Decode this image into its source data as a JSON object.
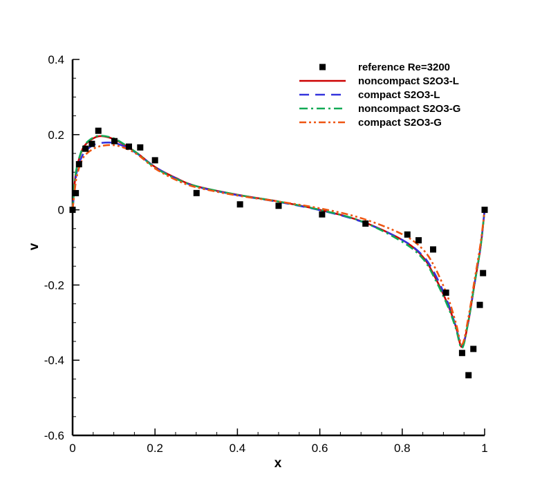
{
  "chart_data": {
    "type": "line",
    "xlabel": "x",
    "ylabel": "v",
    "xlim": [
      0,
      1
    ],
    "ylim": [
      -0.6,
      0.4
    ],
    "xticks": [
      0,
      0.2,
      0.4,
      0.6,
      0.8,
      1
    ],
    "xtick_labels": [
      "0",
      "0.2",
      "0.4",
      "0.6",
      "0.8",
      "1"
    ],
    "yticks": [
      -0.6,
      -0.4,
      -0.2,
      0,
      0.2,
      0.4
    ],
    "ytick_labels": [
      "-0.6",
      "-0.4",
      "-0.2",
      "0",
      "0.2",
      "0.4"
    ],
    "grid": false,
    "legend_position": "top-right",
    "series": [
      {
        "name": "reference Re=3200",
        "type": "scatter",
        "marker": "square",
        "color": "#000000",
        "x": [
          0.0,
          0.0078,
          0.0156,
          0.0313,
          0.0469,
          0.0625,
          0.1016,
          0.1367,
          0.1641,
          0.2,
          0.3008,
          0.4063,
          0.5,
          0.6055,
          0.7109,
          0.8125,
          0.8398,
          0.875,
          0.9063,
          0.9453,
          0.9609,
          0.9727,
          0.9883,
          0.9961,
          1.0
        ],
        "y": [
          0.0,
          0.0444,
          0.1213,
          0.1625,
          0.1754,
          0.2103,
          0.1827,
          0.1681,
          0.166,
          0.1318,
          0.0446,
          0.0145,
          0.0107,
          -0.0121,
          -0.0366,
          -0.0657,
          -0.081,
          -0.1054,
          -0.2203,
          -0.3808,
          -0.4399,
          -0.37,
          -0.2529,
          -0.1683,
          0.0
        ]
      },
      {
        "name": "noncompact S2O3-L",
        "type": "line",
        "dash": "solid",
        "color": "#cc0000",
        "x": [
          0.0,
          0.005,
          0.01,
          0.02,
          0.03,
          0.05,
          0.07,
          0.1,
          0.13,
          0.16,
          0.2,
          0.25,
          0.3,
          0.4,
          0.5,
          0.6,
          0.7,
          0.8,
          0.85,
          0.88,
          0.91,
          0.93,
          0.945,
          0.96,
          0.975,
          0.99,
          1.0
        ],
        "y": [
          0.0,
          0.07,
          0.11,
          0.15,
          0.172,
          0.19,
          0.196,
          0.188,
          0.17,
          0.148,
          0.114,
          0.085,
          0.063,
          0.04,
          0.022,
          0.0,
          -0.03,
          -0.08,
          -0.125,
          -0.18,
          -0.25,
          -0.31,
          -0.365,
          -0.3,
          -0.2,
          -0.1,
          0.0
        ]
      },
      {
        "name": "compact S2O3-L",
        "type": "line",
        "dash": "dashed",
        "color": "#3333dd",
        "x": [
          0.0,
          0.005,
          0.01,
          0.02,
          0.03,
          0.05,
          0.07,
          0.1,
          0.13,
          0.16,
          0.2,
          0.25,
          0.3,
          0.4,
          0.5,
          0.6,
          0.7,
          0.8,
          0.85,
          0.88,
          0.91,
          0.93,
          0.945,
          0.96,
          0.975,
          0.99,
          1.0
        ],
        "y": [
          0.0,
          0.06,
          0.1,
          0.135,
          0.155,
          0.172,
          0.178,
          0.178,
          0.166,
          0.147,
          0.114,
          0.084,
          0.062,
          0.039,
          0.021,
          -0.001,
          -0.031,
          -0.08,
          -0.122,
          -0.172,
          -0.245,
          -0.31,
          -0.362,
          -0.3,
          -0.2,
          -0.1,
          0.0
        ]
      },
      {
        "name": "noncompact S2O3-G",
        "type": "line",
        "dash": "dashdot",
        "color": "#11aa55",
        "x": [
          0.0,
          0.005,
          0.01,
          0.02,
          0.03,
          0.05,
          0.07,
          0.1,
          0.13,
          0.16,
          0.2,
          0.25,
          0.3,
          0.4,
          0.5,
          0.6,
          0.7,
          0.8,
          0.85,
          0.88,
          0.91,
          0.93,
          0.945,
          0.96,
          0.975,
          0.99,
          1.0
        ],
        "y": [
          0.0,
          0.07,
          0.112,
          0.152,
          0.174,
          0.192,
          0.197,
          0.19,
          0.171,
          0.148,
          0.112,
          0.083,
          0.063,
          0.04,
          0.022,
          0.0,
          -0.03,
          -0.085,
          -0.13,
          -0.185,
          -0.255,
          -0.315,
          -0.368,
          -0.3,
          -0.2,
          -0.1,
          0.0
        ]
      },
      {
        "name": "compact S2O3-G",
        "type": "line",
        "dash": "dashdotdot",
        "color": "#ee5511",
        "x": [
          0.0,
          0.005,
          0.01,
          0.02,
          0.03,
          0.05,
          0.07,
          0.1,
          0.13,
          0.16,
          0.2,
          0.25,
          0.3,
          0.4,
          0.5,
          0.6,
          0.7,
          0.8,
          0.85,
          0.88,
          0.91,
          0.93,
          0.945,
          0.96,
          0.975,
          0.99,
          1.0
        ],
        "y": [
          0.0,
          0.05,
          0.088,
          0.125,
          0.145,
          0.162,
          0.17,
          0.172,
          0.163,
          0.145,
          0.11,
          0.08,
          0.06,
          0.038,
          0.022,
          0.004,
          -0.022,
          -0.065,
          -0.105,
          -0.155,
          -0.23,
          -0.3,
          -0.358,
          -0.29,
          -0.19,
          -0.09,
          0.0
        ]
      }
    ]
  }
}
